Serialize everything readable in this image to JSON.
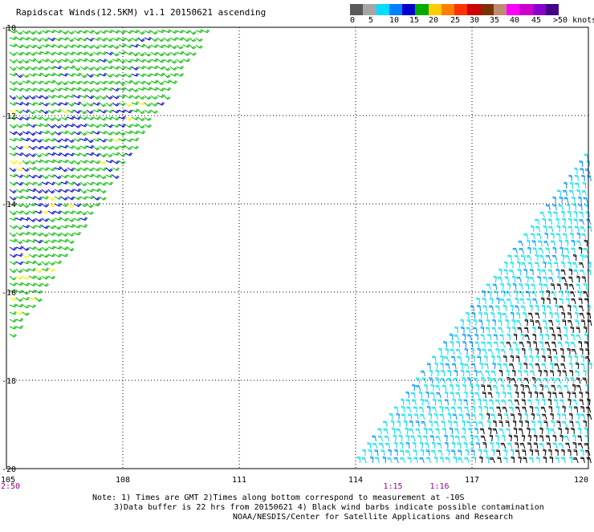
{
  "title": "Rapidscat Winds(12.5KM) v1.1 20150621 ascending",
  "legend": {
    "colors": [
      "#595959",
      "#a6a6a6",
      "#00ddff",
      "#0080ff",
      "#0000cc",
      "#00aa00",
      "#ffcc00",
      "#ff8000",
      "#ff3300",
      "#cc0000",
      "#7a3300",
      "#c08a70",
      "#ff00ff",
      "#cc00cc",
      "#8800cc",
      "#440088"
    ],
    "labels": [
      "0",
      "5",
      "10",
      "15",
      "20",
      "25",
      "30",
      "35",
      "40",
      "45",
      ">50 knots"
    ]
  },
  "map": {
    "lat_ticks": [
      "-10",
      "-12",
      "-14",
      "-16",
      "-18",
      "-20"
    ],
    "lon_ticks": [
      "105",
      "108",
      "111",
      "114",
      "117",
      "120"
    ],
    "lat_range": [
      -20,
      -10
    ],
    "lon_range": [
      105,
      120
    ],
    "times": [
      "2:50",
      "1:15",
      "1:16"
    ],
    "colors": {
      "green": "#00bb00",
      "blue": "#0000cc",
      "cyan": "#00ddee",
      "lightblue": "#0090ff",
      "black": "#000000",
      "yellow": "#ffee00",
      "grid": "#000000",
      "time": "#990099"
    }
  },
  "footer": {
    "line1": "Note: 1) Times are GMT 2)Times along bottom correspond to measurement at -10S",
    "line2": "3)Data buffer is 22 hrs from 20150621 4) Black wind barbs indicate possible contamination",
    "line3": "NOAA/NESDIS/Center for Satellite Applications and Research"
  }
}
